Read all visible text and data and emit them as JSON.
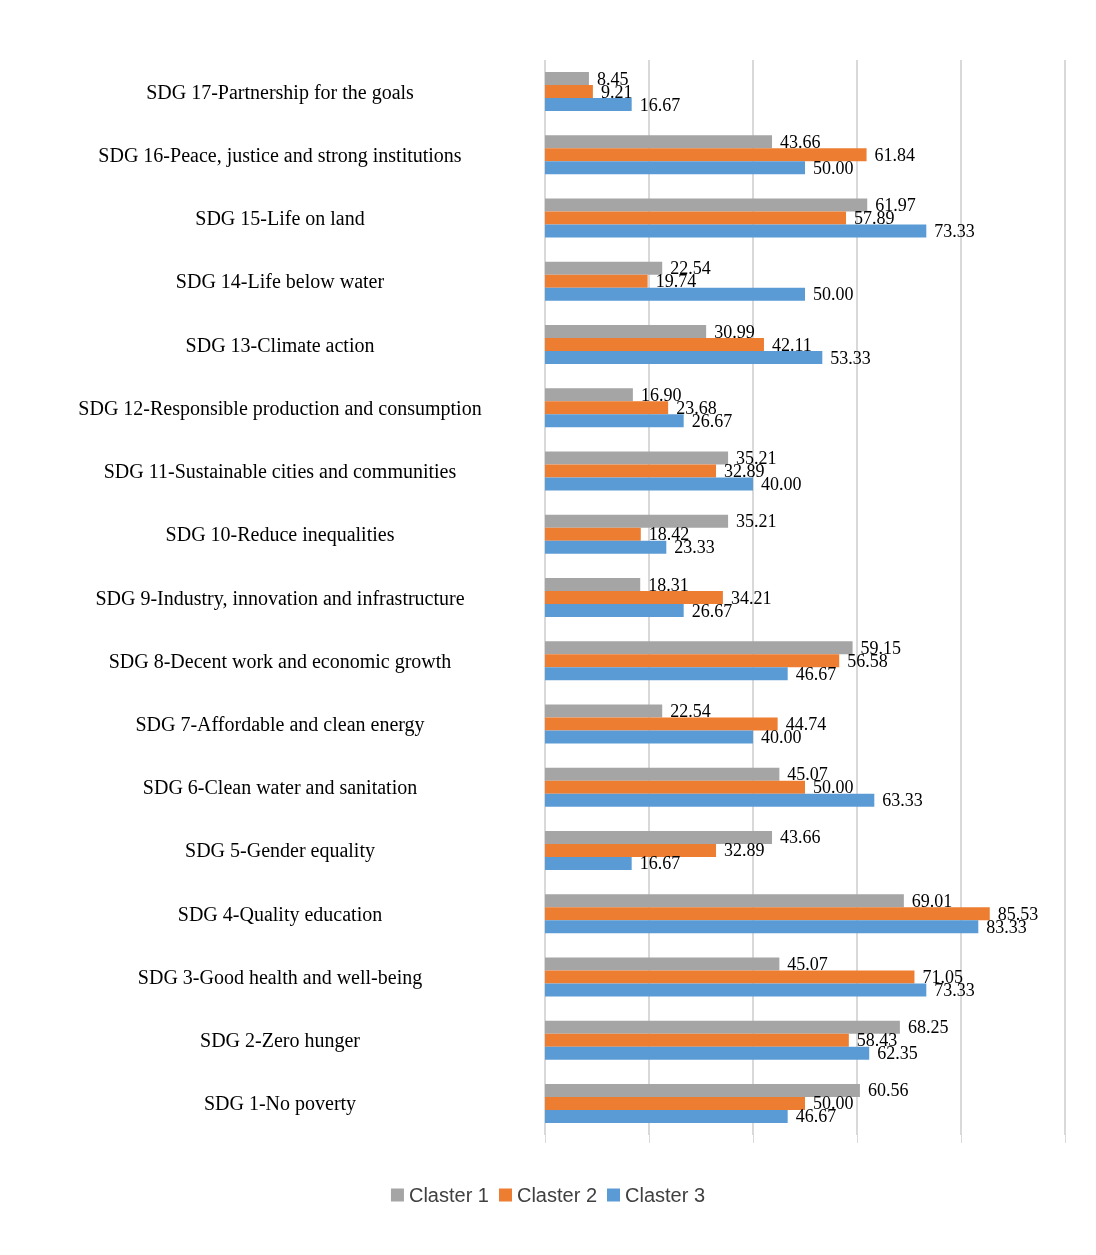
{
  "chart_data": {
    "type": "bar",
    "orientation": "horizontal",
    "categories": [
      "SDG 17-Partnership for the goals",
      "SDG 16-Peace, justice and strong institutions",
      "SDG 15-Life on land",
      "SDG 14-Life below water",
      "SDG 13-Climate action",
      "SDG 12-Responsible production and consumption",
      "SDG 11-Sustainable cities and communities",
      "SDG 10-Reduce inequalities",
      "SDG 9-Industry, innovation and infrastructure",
      "SDG 8-Decent work and economic growth",
      "SDG 7-Affordable and clean energy",
      "SDG 6-Clean water and sanitation",
      "SDG 5-Gender equality",
      "SDG 4-Quality education",
      "SDG 3-Good health and well-being",
      "SDG 2-Zero hunger",
      "SDG 1-No poverty"
    ],
    "series": [
      {
        "name": "Claster 1",
        "color": "#a5a5a5",
        "values": [
          8.45,
          43.66,
          61.97,
          22.54,
          30.99,
          16.9,
          35.21,
          35.21,
          18.31,
          59.15,
          22.54,
          45.07,
          43.66,
          69.01,
          45.07,
          68.25,
          60.56
        ],
        "value_labels": [
          "8.45",
          "43.66",
          "61.97",
          "22.54",
          "30.99",
          "16.90",
          "35.21",
          "35.21",
          "18.31",
          "59.15",
          "22.54",
          "45.07",
          "43.66",
          "69.01",
          "45.07",
          "68.25",
          "60.56"
        ]
      },
      {
        "name": "Claster 2",
        "color": "#ed7d31",
        "values": [
          9.21,
          61.84,
          57.89,
          19.74,
          42.11,
          23.68,
          32.89,
          18.42,
          34.21,
          56.58,
          44.74,
          50.0,
          32.89,
          85.53,
          71.05,
          58.43,
          50.0
        ],
        "value_labels": [
          "9.21",
          "61.84",
          "57.89",
          "19.74",
          "42.11",
          "23.68",
          "32.89",
          "18.42",
          "34.21",
          "56.58",
          "44.74",
          "50.00",
          "32.89",
          "85.53",
          "71.05",
          "58.43",
          "50.00"
        ]
      },
      {
        "name": "Claster 3",
        "color": "#5b9bd5",
        "values": [
          16.67,
          50.0,
          73.33,
          50.0,
          53.33,
          26.67,
          40.0,
          23.33,
          26.67,
          46.67,
          40.0,
          63.33,
          16.67,
          83.33,
          73.33,
          62.35,
          46.67
        ],
        "value_labels": [
          "16.67",
          "50.00",
          "73.33",
          "50.00",
          "53.33",
          "26.67",
          "40.00",
          "23.33",
          "26.67",
          "46.67",
          "40.00",
          "63.33",
          "16.67",
          "83.33",
          "73.33",
          "62.35",
          "46.67"
        ]
      }
    ],
    "xlim": [
      0,
      100
    ],
    "xticks": [
      {
        "value": 0,
        "label": null
      },
      {
        "value": 20,
        "label": null
      },
      {
        "value": 40,
        "label": null
      },
      {
        "value": 60,
        "label": null
      },
      {
        "value": 80,
        "label": null
      },
      {
        "value": 100,
        "label": null
      }
    ],
    "tick_labels": "y",
    "grid": "x",
    "legend": "bottom"
  }
}
